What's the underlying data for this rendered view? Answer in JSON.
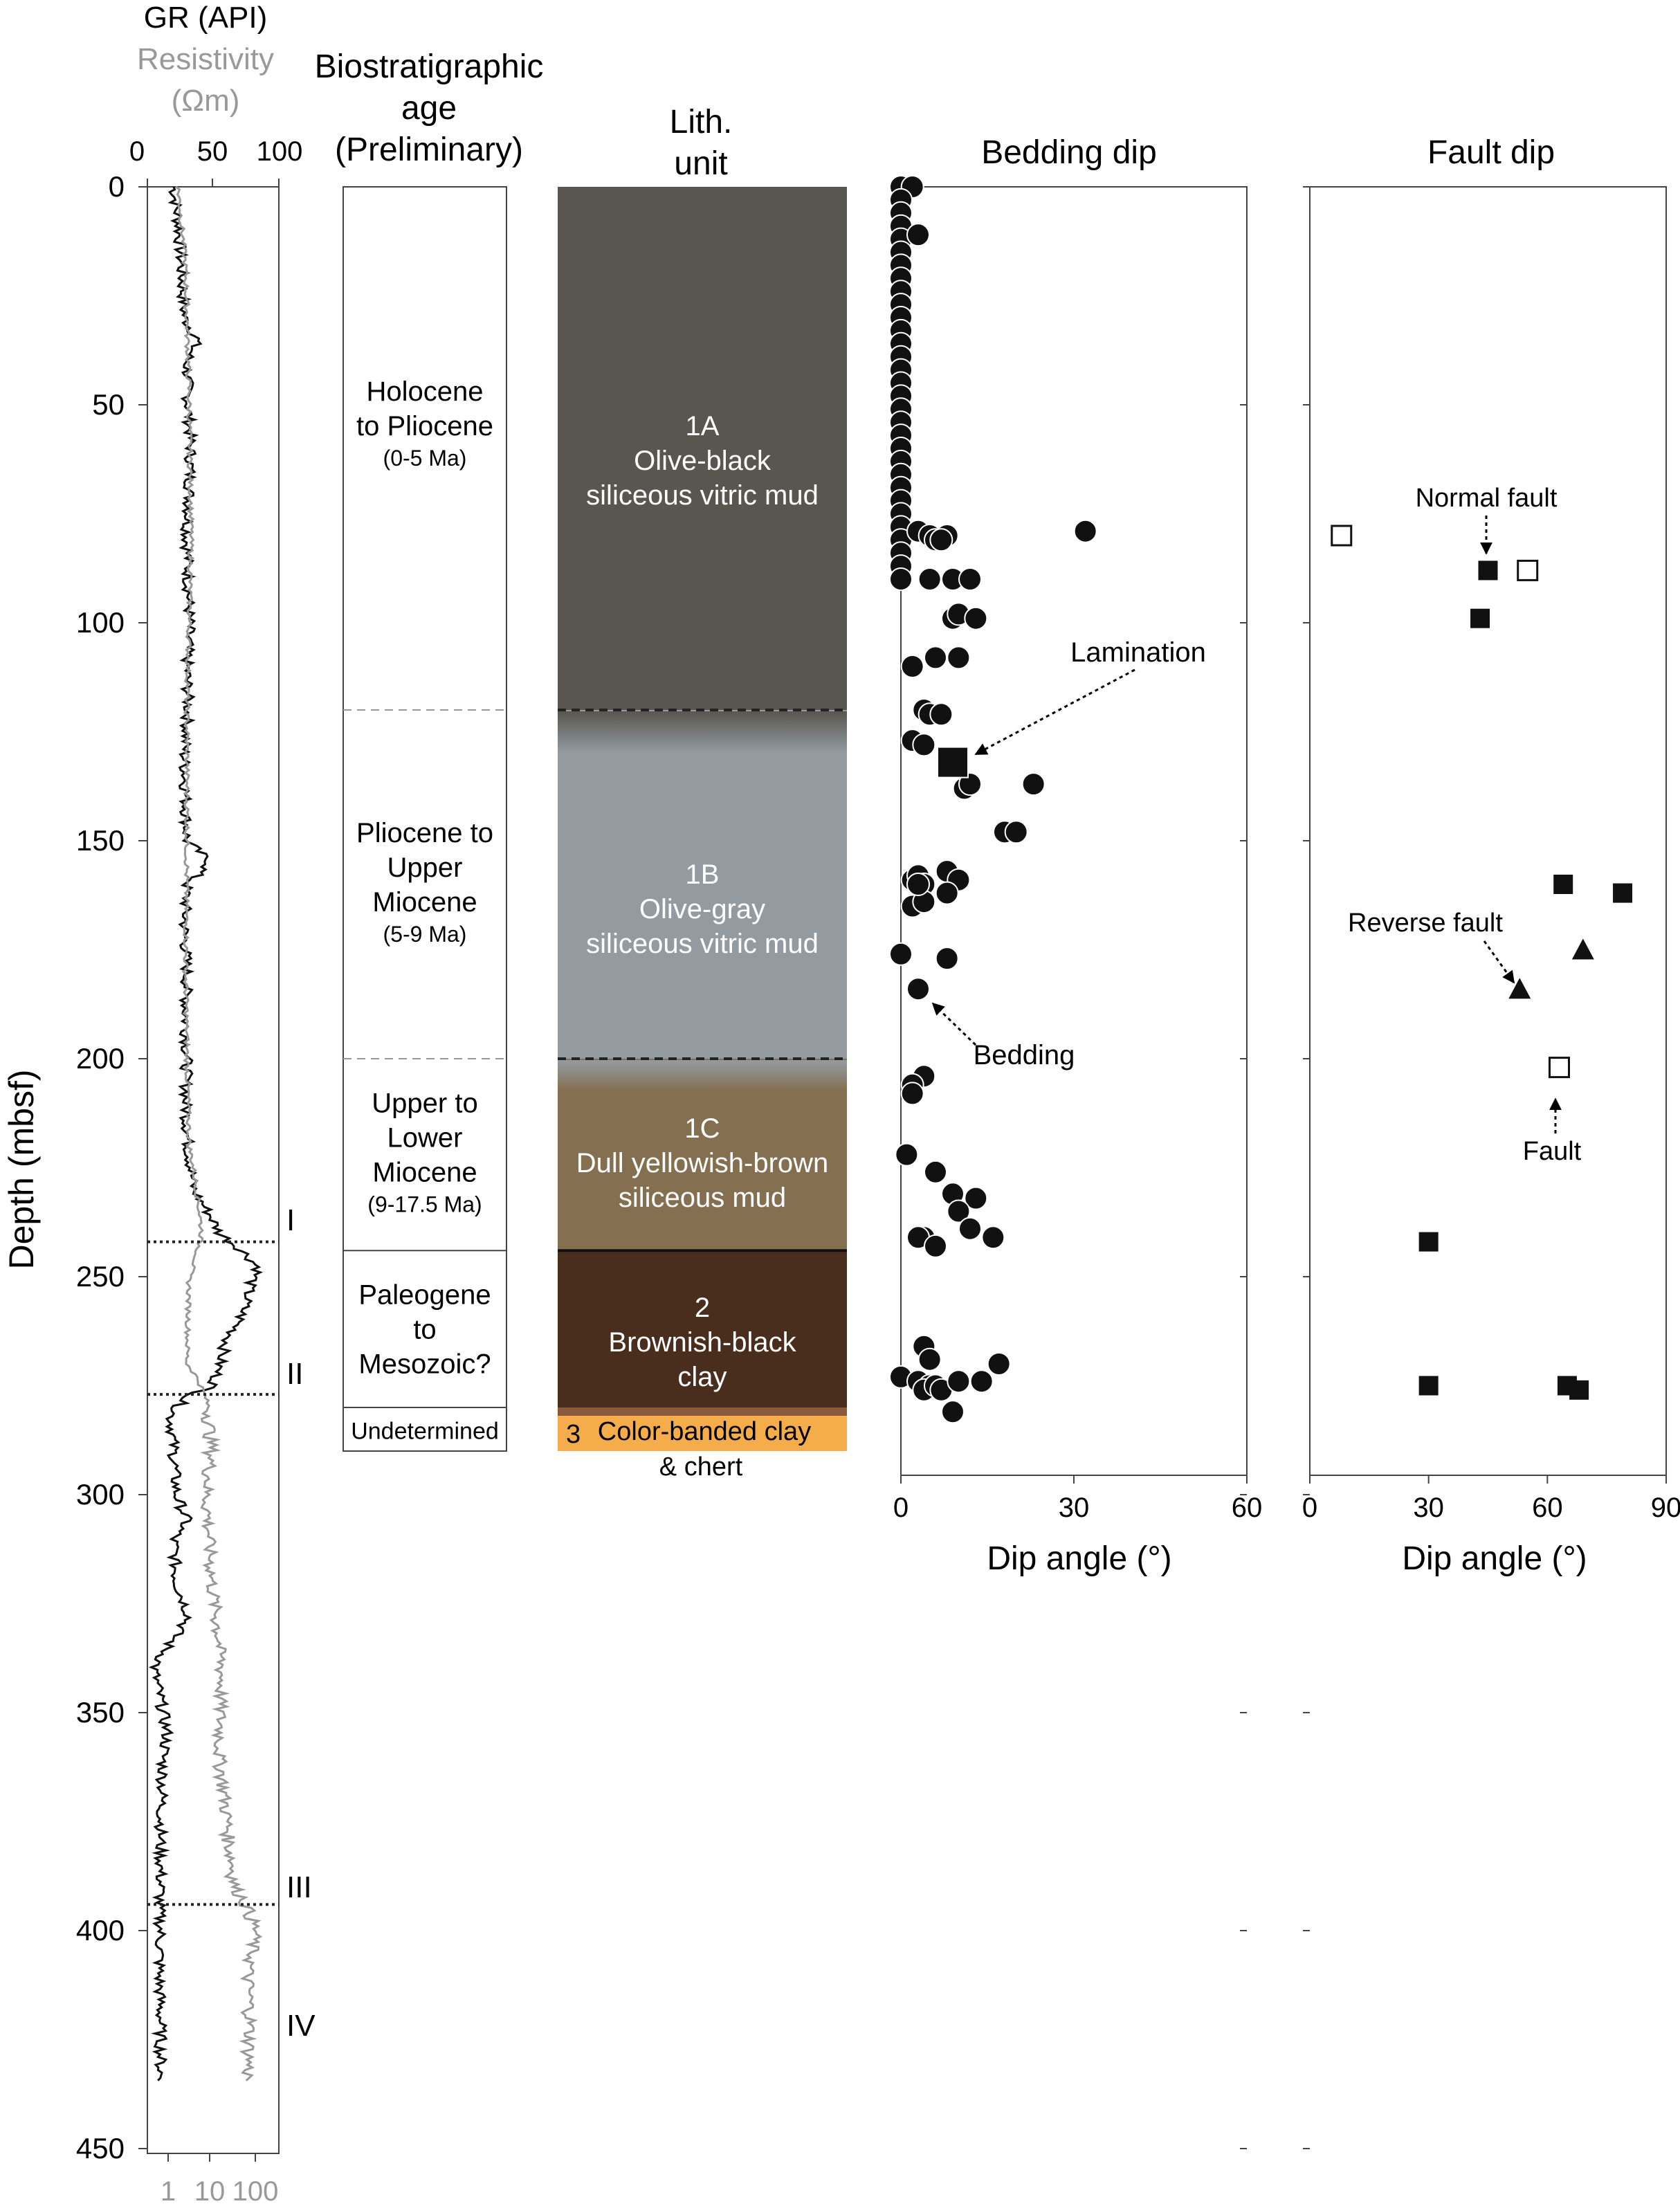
{
  "panels": {
    "log": {
      "title_gr": "GR (API)",
      "title_res": "Resistivity",
      "title_res_unit": "(Ωm)",
      "gr_ticks": [
        "0",
        "50",
        "100"
      ],
      "res_ticks": [
        "1",
        "10",
        "100"
      ],
      "ylabel": "Depth (mbsf)",
      "depth_ticks": [
        "0",
        "50",
        "100",
        "150",
        "200",
        "250",
        "300",
        "350",
        "400",
        "450"
      ],
      "boundaries": [
        {
          "label": "I",
          "depth": 242
        },
        {
          "label": "II",
          "depth": 277
        },
        {
          "label": "III",
          "depth": 394
        },
        {
          "label": "IV",
          "depth": null
        }
      ]
    },
    "age": {
      "title": [
        "Biostratigraphic",
        "age",
        "(Preliminary)"
      ],
      "intervals": [
        {
          "lines": [
            "Holocene",
            "to Pliocene"
          ],
          "range": "(0-5 Ma)",
          "top": 0,
          "bottom": 120
        },
        {
          "lines": [
            "Pliocene to",
            "Upper",
            "Miocene"
          ],
          "range": "(5-9 Ma)",
          "top": 120,
          "bottom": 200
        },
        {
          "lines": [
            "Upper to",
            "Lower",
            "Miocene"
          ],
          "range": "(9-17.5 Ma)",
          "top": 200,
          "bottom": 244
        },
        {
          "lines": [
            "Paleogene",
            "to",
            "Mesozoic?"
          ],
          "range": "",
          "top": 244,
          "bottom": 280
        },
        {
          "lines": [
            "Undetermined"
          ],
          "range": "",
          "top": 280,
          "bottom": 290
        }
      ]
    },
    "lith": {
      "title": [
        "Lith.",
        "unit"
      ],
      "units": [
        {
          "id": "1A",
          "lines": [
            "Olive-black",
            "siliceous vitric mud"
          ],
          "top": 0,
          "bottom": 120,
          "color": "#58564f"
        },
        {
          "id": "1B",
          "lines": [
            "Olive-gray",
            "siliceous vitric mud"
          ],
          "top": 120,
          "bottom": 200,
          "color": "#939ba1"
        },
        {
          "id": "1C",
          "lines": [
            "Dull yellowish-brown",
            "siliceous mud"
          ],
          "top": 200,
          "bottom": 244,
          "color": "#856f51"
        },
        {
          "id": "2",
          "lines": [
            "Brownish-black",
            "clay"
          ],
          "top": 244,
          "bottom": 280,
          "color": "#4a2e1d"
        },
        {
          "id": "3",
          "lines": [
            "Color-banded clay",
            "& chert"
          ],
          "top": 280,
          "bottom": 290,
          "color": "#f5ac4a"
        }
      ]
    },
    "bedding": {
      "title": "Bedding dip",
      "xlabel": "Dip angle (°)",
      "x_ticks": [
        "0",
        "30",
        "60"
      ],
      "annotations": {
        "lamination": "Lamination",
        "bedding": "Bedding"
      }
    },
    "fault": {
      "title": "Fault dip",
      "xlabel": "Dip angle (°)",
      "x_ticks": [
        "0",
        "30",
        "60",
        "90"
      ],
      "annotations": {
        "normal": "Normal fault",
        "reverse": "Reverse fault",
        "fault": "Fault"
      }
    }
  },
  "chart_data": [
    {
      "type": "line",
      "title": "GR (API) / Resistivity (Ωm)",
      "ylabel": "Depth (mbsf)",
      "ylim": [
        0,
        450
      ],
      "series": [
        {
          "name": "GR (API)",
          "color": "#111111",
          "xlim": [
            0,
            100
          ],
          "depth": [
            0,
            10,
            20,
            30,
            35,
            40,
            50,
            60,
            70,
            80,
            90,
            100,
            110,
            120,
            130,
            140,
            150,
            155,
            160,
            170,
            180,
            190,
            200,
            210,
            220,
            230,
            236,
            240,
            244,
            248,
            252,
            256,
            260,
            265,
            270,
            275,
            278,
            282,
            290,
            300,
            306,
            310,
            320,
            328,
            335,
            340,
            350,
            355,
            360,
            370,
            380,
            390,
            395,
            400,
            410,
            420,
            435
          ],
          "values": [
            20,
            24,
            26,
            28,
            38,
            30,
            31,
            33,
            32,
            30,
            31,
            32,
            30,
            31,
            28,
            29,
            30,
            48,
            30,
            28,
            30,
            29,
            30,
            29,
            31,
            35,
            48,
            55,
            72,
            85,
            78,
            75,
            70,
            60,
            55,
            50,
            28,
            18,
            20,
            22,
            30,
            20,
            22,
            32,
            15,
            5,
            12,
            15,
            12,
            11,
            10,
            10,
            9,
            10,
            9,
            10,
            10
          ]
        },
        {
          "name": "Resistivity (Ωm)",
          "color": "#999999",
          "xlim": [
            0.2,
            200
          ],
          "log": true,
          "depth": [
            0,
            20,
            50,
            80,
            100,
            120,
            150,
            180,
            200,
            220,
            240,
            250,
            260,
            270,
            280,
            290,
            300,
            320,
            340,
            360,
            380,
            390,
            395,
            400,
            410,
            420,
            435
          ],
          "values": [
            1.0,
            1.5,
            1.8,
            2.0,
            1.8,
            1.6,
            1.6,
            1.5,
            1.6,
            1.8,
            3.5,
            1.8,
            1.7,
            1.6,
            5.0,
            6.0,
            4.5,
            6.0,
            10.0,
            9.0,
            15.0,
            20.0,
            40.0,
            60.0,
            40.0,
            45.0,
            40.0
          ]
        }
      ]
    },
    {
      "type": "scatter",
      "title": "Bedding dip",
      "xlabel": "Dip angle (°)",
      "ylabel": "Depth (mbsf)",
      "xlim": [
        0,
        60
      ],
      "ylim": [
        0,
        450
      ],
      "series": [
        {
          "name": "Bedding",
          "marker": "circle",
          "points": [
            [
              0,
              0
            ],
            [
              2,
              0
            ],
            [
              0,
              3
            ],
            [
              0,
              6
            ],
            [
              0,
              9
            ],
            [
              0,
              12
            ],
            [
              3,
              11
            ],
            [
              0,
              15
            ],
            [
              0,
              18
            ],
            [
              0,
              21
            ],
            [
              0,
              24
            ],
            [
              0,
              27
            ],
            [
              0,
              30
            ],
            [
              0,
              33
            ],
            [
              0,
              36
            ],
            [
              0,
              39
            ],
            [
              0,
              42
            ],
            [
              0,
              45
            ],
            [
              0,
              48
            ],
            [
              0,
              51
            ],
            [
              0,
              54
            ],
            [
              0,
              57
            ],
            [
              0,
              60
            ],
            [
              0,
              63
            ],
            [
              0,
              66
            ],
            [
              0,
              69
            ],
            [
              0,
              72
            ],
            [
              0,
              75
            ],
            [
              0,
              78
            ],
            [
              0,
              81
            ],
            [
              0,
              84
            ],
            [
              0,
              87
            ],
            [
              0,
              90
            ],
            [
              3,
              79
            ],
            [
              5,
              80
            ],
            [
              6,
              81
            ],
            [
              8,
              80
            ],
            [
              7,
              81
            ],
            [
              32,
              79
            ],
            [
              5,
              90
            ],
            [
              9,
              90
            ],
            [
              12,
              90
            ],
            [
              9,
              99
            ],
            [
              10,
              98
            ],
            [
              13,
              99
            ],
            [
              2,
              110
            ],
            [
              6,
              108
            ],
            [
              10,
              108
            ],
            [
              4,
              120
            ],
            [
              5,
              121
            ],
            [
              7,
              121
            ],
            [
              2,
              127
            ],
            [
              4,
              128
            ],
            [
              11,
              138
            ],
            [
              12,
              137
            ],
            [
              23,
              137
            ],
            [
              18,
              148
            ],
            [
              20,
              148
            ],
            [
              2,
              159
            ],
            [
              3,
              158
            ],
            [
              4,
              160
            ],
            [
              8,
              157
            ],
            [
              10,
              159
            ],
            [
              2,
              165
            ],
            [
              4,
              164
            ],
            [
              8,
              162
            ],
            [
              3,
              160
            ],
            [
              0,
              176
            ],
            [
              8,
              177
            ],
            [
              3,
              184
            ],
            [
              4,
              204
            ],
            [
              2,
              206
            ],
            [
              2,
              208
            ],
            [
              1,
              222
            ],
            [
              6,
              226
            ],
            [
              9,
              231
            ],
            [
              13,
              232
            ],
            [
              10,
              235
            ],
            [
              4,
              241
            ],
            [
              3,
              241
            ],
            [
              12,
              239
            ],
            [
              16,
              241
            ],
            [
              6,
              243
            ],
            [
              0,
              273
            ],
            [
              3,
              274
            ],
            [
              5,
              275
            ],
            [
              4,
              276
            ],
            [
              6,
              275
            ],
            [
              7,
              276
            ],
            [
              10,
              274
            ],
            [
              14,
              274
            ],
            [
              4,
              266
            ],
            [
              5,
              269
            ],
            [
              17,
              270
            ],
            [
              9,
              281
            ]
          ]
        },
        {
          "name": "Lamination",
          "marker": "square",
          "points": [
            [
              9,
              132
            ]
          ]
        }
      ]
    },
    {
      "type": "scatter",
      "title": "Fault dip",
      "xlabel": "Dip angle (°)",
      "ylabel": "Depth (mbsf)",
      "xlim": [
        0,
        90
      ],
      "ylim": [
        0,
        450
      ],
      "series": [
        {
          "name": "Normal fault",
          "marker": "filled-square",
          "points": [
            [
              45,
              88
            ],
            [
              43,
              99
            ],
            [
              64,
              160
            ],
            [
              79,
              162
            ],
            [
              30,
              242
            ],
            [
              30,
              275
            ],
            [
              65,
              275
            ],
            [
              68,
              276
            ]
          ]
        },
        {
          "name": "Fault",
          "marker": "open-square",
          "points": [
            [
              8,
              80
            ],
            [
              55,
              88
            ],
            [
              63,
              202
            ]
          ]
        },
        {
          "name": "Reverse fault",
          "marker": "filled-triangle",
          "points": [
            [
              69,
              175
            ],
            [
              53,
              184
            ]
          ]
        }
      ]
    }
  ]
}
